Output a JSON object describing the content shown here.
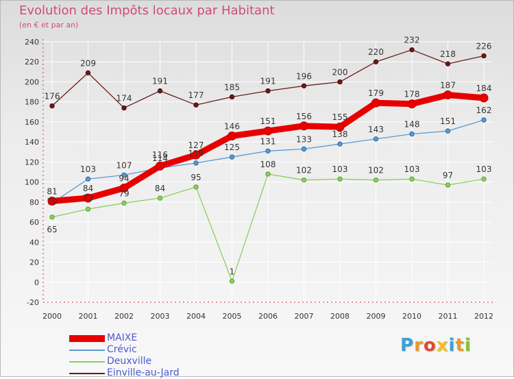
{
  "header": {
    "title": "Evolution des Impôts locaux par Habitant",
    "subtitle": "(en € et par an)"
  },
  "logo": {
    "letters": [
      "P",
      "r",
      "o",
      "x",
      "i",
      "t",
      "i"
    ],
    "colors": [
      "#3aa0d8",
      "#e89a2a",
      "#e04a2a",
      "#f0c020",
      "#3aa0d8",
      "#e89a2a",
      "#8ac030"
    ]
  },
  "chart_data": {
    "type": "line",
    "x": [
      "2000",
      "2001",
      "2002",
      "2003",
      "2004",
      "2005",
      "2006",
      "2007",
      "2008",
      "2009",
      "2010",
      "2011",
      "2012"
    ],
    "ylim": [
      -20,
      240
    ],
    "yticks": [
      -20,
      0,
      20,
      40,
      60,
      80,
      100,
      120,
      140,
      160,
      180,
      200,
      220,
      240
    ],
    "grid": true,
    "legend_position": "bottom-left",
    "series": [
      {
        "name": "MAIXE",
        "color": "#e80000",
        "values": [
          81,
          84,
          94,
          116,
          127,
          146,
          151,
          156,
          155,
          179,
          178,
          187,
          184
        ],
        "labels": [
          "81",
          "84",
          "94",
          "116",
          "127",
          "146",
          "151",
          "156",
          "155",
          "179",
          "178",
          "187",
          "184"
        ]
      },
      {
        "name": "Crévic",
        "color": "#5a9ad0",
        "values": [
          79,
          103,
          107,
          114,
          119,
          125,
          131,
          133,
          138,
          143,
          148,
          151,
          162
        ],
        "labels": [
          "79",
          "103",
          "107",
          "114",
          "119",
          "125",
          "131",
          "133",
          "138",
          "143",
          "148",
          "151",
          "162"
        ]
      },
      {
        "name": "Deuxville",
        "color": "#8ad060",
        "values": [
          65,
          73,
          79,
          84,
          95,
          1,
          108,
          102,
          103,
          102,
          103,
          97,
          103
        ],
        "labels": [
          "65",
          "73",
          "79",
          "84",
          "95",
          "1",
          "108",
          "102",
          "103",
          "102",
          "103",
          "97",
          "103"
        ]
      },
      {
        "name": "Einville-au-Jard",
        "color": "#6a1a1a",
        "values": [
          176,
          209,
          174,
          191,
          177,
          185,
          191,
          196,
          200,
          220,
          232,
          218,
          226
        ],
        "labels": [
          "176",
          "209",
          "174",
          "191",
          "177",
          "185",
          "191",
          "196",
          "200",
          "220",
          "232",
          "218",
          "226"
        ]
      }
    ]
  }
}
